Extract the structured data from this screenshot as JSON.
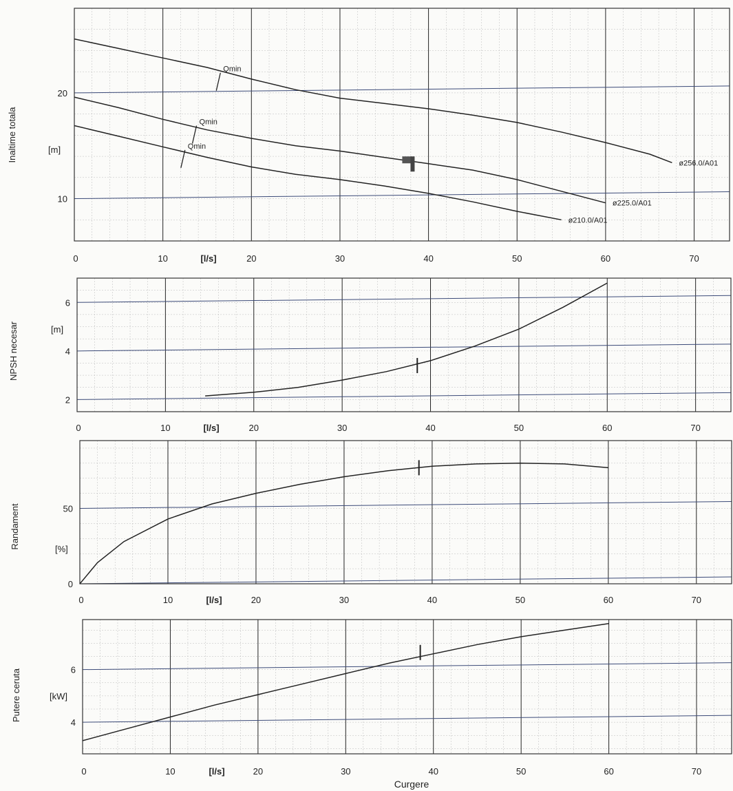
{
  "xlabel": "Curgere",
  "flow_unit": "[l/s]",
  "chart_data": [
    {
      "type": "line",
      "id": "head",
      "ylabel": "Inaltime totala",
      "unit": "[m]",
      "xlim": [
        0,
        74
      ],
      "ylim": [
        6,
        28
      ],
      "xticks": [
        0,
        10,
        20,
        30,
        40,
        50,
        60,
        70
      ],
      "yticks": [
        10,
        20
      ],
      "series": [
        {
          "name": "ø256.0/A01",
          "x": [
            0,
            5,
            10,
            15,
            20,
            25,
            30,
            35,
            40,
            45,
            50,
            55,
            60,
            65,
            67.5
          ],
          "y": [
            25.1,
            24.2,
            23.3,
            22.4,
            21.3,
            20.3,
            19.5,
            19.0,
            18.5,
            17.9,
            17.2,
            16.3,
            15.3,
            14.2,
            13.4
          ]
        },
        {
          "name": "ø225.0/A01",
          "x": [
            0,
            5,
            10,
            15,
            20,
            25,
            30,
            35,
            40,
            45,
            50,
            55,
            60
          ],
          "y": [
            19.6,
            18.6,
            17.5,
            16.5,
            15.7,
            15.0,
            14.5,
            13.9,
            13.3,
            12.7,
            11.8,
            10.7,
            9.6
          ]
        },
        {
          "name": "ø210.0/A01",
          "x": [
            0,
            5,
            10,
            15,
            20,
            25,
            30,
            35,
            40,
            45,
            50,
            55
          ],
          "y": [
            16.9,
            15.9,
            14.9,
            13.9,
            13.0,
            12.3,
            11.8,
            11.2,
            10.5,
            9.7,
            8.8,
            8.0
          ]
        }
      ],
      "annotations": [
        {
          "text": "Qmin",
          "x": 16.5,
          "y": 21.9
        },
        {
          "text": "Qmin",
          "x": 13.8,
          "y": 16.9
        },
        {
          "text": "Qmin",
          "x": 12.5,
          "y": 14.6
        }
      ]
    },
    {
      "type": "line",
      "id": "npsh",
      "ylabel": "NPSH necesar",
      "unit": "[m]",
      "xlim": [
        0,
        74
      ],
      "ylim": [
        1.5,
        7.0
      ],
      "xticks": [
        0,
        10,
        20,
        30,
        40,
        50,
        60,
        70
      ],
      "yticks": [
        2,
        4,
        6
      ],
      "series": [
        {
          "name": "",
          "x": [
            14.5,
            20,
            25,
            30,
            35,
            40,
            45,
            50,
            55,
            60
          ],
          "y": [
            2.15,
            2.3,
            2.5,
            2.8,
            3.15,
            3.6,
            4.2,
            4.9,
            5.8,
            6.8
          ]
        }
      ],
      "annotations": [
        {
          "text": "",
          "x": 38.5,
          "y": 3.4
        }
      ]
    },
    {
      "type": "line",
      "id": "efficiency",
      "ylabel": "Randament",
      "unit": "[%]",
      "xlim": [
        0,
        74
      ],
      "ylim": [
        0,
        95
      ],
      "xticks": [
        0,
        10,
        20,
        30,
        40,
        50,
        60,
        70
      ],
      "yticks": [
        0,
        50
      ],
      "series": [
        {
          "name": "",
          "x": [
            0,
            2,
            5,
            10,
            15,
            20,
            25,
            30,
            35,
            40,
            45,
            50,
            55,
            60
          ],
          "y": [
            0,
            14,
            28,
            43,
            53,
            60,
            66,
            71,
            75,
            78,
            79.5,
            80,
            79.5,
            77
          ]
        }
      ],
      "annotations": [
        {
          "text": "",
          "x": 38.5,
          "y": 77
        }
      ]
    },
    {
      "type": "line",
      "id": "power",
      "ylabel": "Putere ceruta",
      "unit": "[kW]",
      "xlim": [
        0,
        74
      ],
      "ylim": [
        2.8,
        7.9
      ],
      "xticks": [
        0,
        10,
        20,
        30,
        40,
        50,
        60,
        70
      ],
      "yticks": [
        4,
        6
      ],
      "series": [
        {
          "name": "",
          "x": [
            0,
            5,
            10,
            15,
            20,
            25,
            30,
            35,
            40,
            45,
            50,
            55,
            60
          ],
          "y": [
            3.3,
            3.75,
            4.2,
            4.65,
            5.05,
            5.45,
            5.85,
            6.25,
            6.6,
            6.95,
            7.25,
            7.5,
            7.75
          ]
        }
      ],
      "annotations": [
        {
          "text": "",
          "x": 38.5,
          "y": 6.65
        }
      ]
    }
  ]
}
